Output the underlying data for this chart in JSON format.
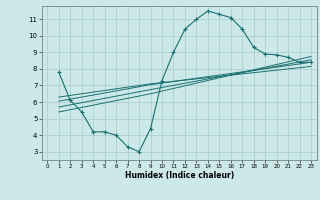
{
  "title": "",
  "xlabel": "Humidex (Indice chaleur)",
  "bg_color": "#cce8e8",
  "grid_color": "#aacccc",
  "line_color": "#1a7070",
  "xlim": [
    -0.5,
    23.5
  ],
  "ylim": [
    2.5,
    11.8
  ],
  "xticks": [
    0,
    1,
    2,
    3,
    4,
    5,
    6,
    7,
    8,
    9,
    10,
    11,
    12,
    13,
    14,
    15,
    16,
    17,
    18,
    19,
    20,
    21,
    22,
    23
  ],
  "yticks": [
    3,
    4,
    5,
    6,
    7,
    8,
    9,
    10,
    11
  ],
  "curve1_x": [
    1,
    2,
    3,
    4,
    5,
    6,
    7,
    8,
    9,
    10,
    11,
    12,
    13,
    14,
    15,
    16,
    17,
    18,
    19,
    20,
    21,
    22,
    23
  ],
  "curve1_y": [
    7.8,
    6.1,
    5.4,
    4.2,
    4.2,
    4.0,
    3.3,
    3.0,
    4.4,
    7.3,
    9.0,
    10.4,
    11.0,
    11.5,
    11.3,
    11.1,
    10.4,
    9.3,
    8.9,
    8.85,
    8.7,
    8.4,
    8.4
  ],
  "line2_x": [
    1,
    9,
    23
  ],
  "line2_y": [
    6.05,
    7.05,
    8.4
  ],
  "line3_x": [
    1,
    9,
    23
  ],
  "line3_y": [
    6.3,
    7.1,
    8.15
  ],
  "line4_x": [
    1,
    9,
    23
  ],
  "line4_y": [
    5.7,
    6.75,
    8.55
  ],
  "line5_x": [
    1,
    9,
    23
  ],
  "line5_y": [
    5.4,
    6.5,
    8.75
  ]
}
